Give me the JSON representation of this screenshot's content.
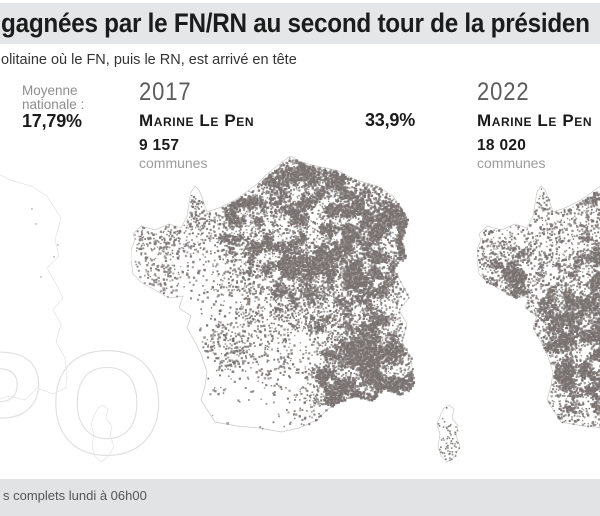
{
  "header": {
    "title": "gagnées par le FN/RN au second tour de la présiden",
    "subtitle": "olitaine où le FN, puis le RN, est arrivé en tête"
  },
  "national_average": {
    "label_line1": "Moyenne",
    "label_line2": "nationale :",
    "value": "17,79%"
  },
  "panels": [
    {
      "year": "2017",
      "candidate": "Marine Le Pen",
      "share": "33,9%",
      "communes_count": "9 157",
      "communes_label": "communes"
    },
    {
      "year": "2022",
      "candidate": "Marine Le Pen",
      "communes_count": "18 020",
      "communes_label": "communes"
    }
  ],
  "footer": {
    "note": "s complets lundi à 06h00"
  },
  "watermark": {
    "letters": "PO"
  },
  "colors": {
    "header_band": "#e4e6e7",
    "footer_band": "#e1e3e4",
    "title_text": "#1c1c1c",
    "muted_text": "#9c9c9c",
    "dot": "#78716f",
    "map_outline": "#c8c8c8",
    "faint_outline": "#e3e3e3",
    "watermark_stroke": "#e1e1e1"
  }
}
